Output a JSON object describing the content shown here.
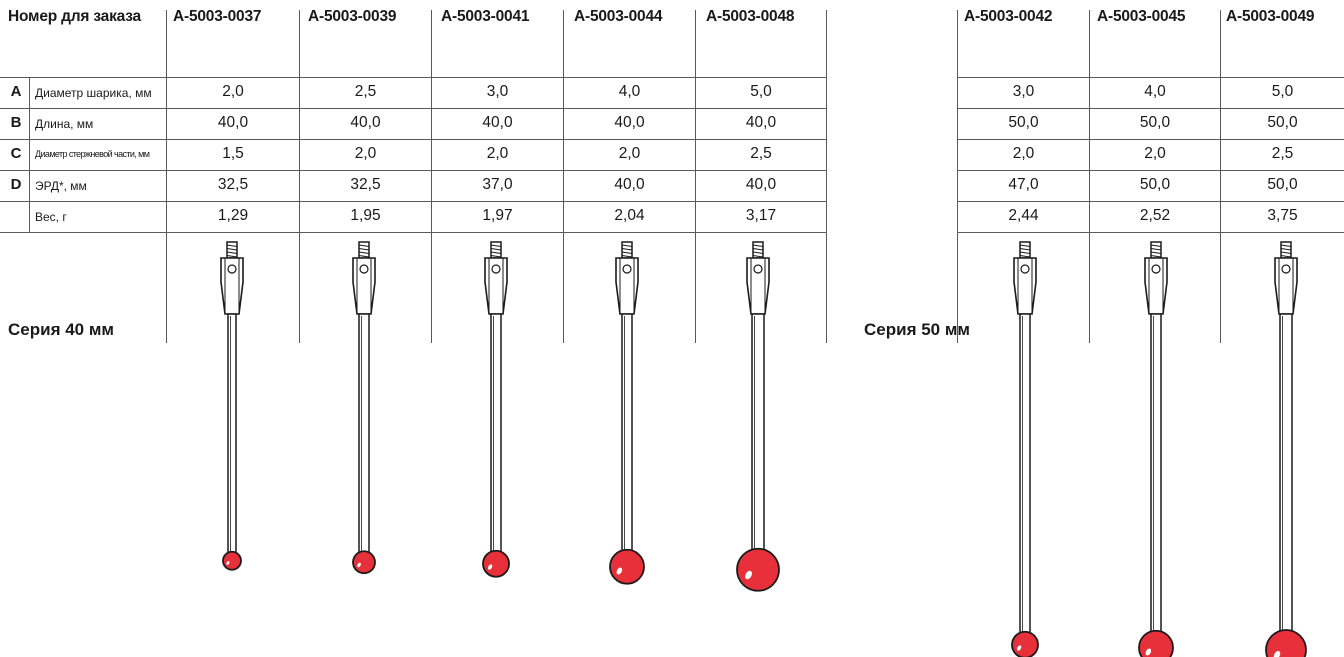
{
  "table40": {
    "header_label": "Номер для заказа",
    "columns": [
      "A-5003-0037",
      "A-5003-0039",
      "A-5003-0041",
      "A-5003-0044",
      "A-5003-0048"
    ],
    "rows": [
      {
        "letter": "A",
        "label": "Диаметр шарика, мм",
        "values": [
          "2,0",
          "2,5",
          "3,0",
          "4,0",
          "5,0"
        ]
      },
      {
        "letter": "B",
        "label": "Длина, мм",
        "values": [
          "40,0",
          "40,0",
          "40,0",
          "40,0",
          "40,0"
        ]
      },
      {
        "letter": "C",
        "label": "Диаметр стержневой части, мм",
        "values": [
          "1,5",
          "2,0",
          "2,0",
          "2,0",
          "2,5"
        ]
      },
      {
        "letter": "D",
        "label": "ЭРД*, мм",
        "values": [
          "32,5",
          "32,5",
          "37,0",
          "40,0",
          "40,0"
        ]
      },
      {
        "letter": "",
        "label": "Вес, г",
        "values": [
          "1,29",
          "1,95",
          "1,97",
          "2,04",
          "3,17"
        ]
      }
    ],
    "series_label": "Серия 40 мм"
  },
  "table50": {
    "columns": [
      "A-5003-0042",
      "A-5003-0045",
      "A-5003-0049"
    ],
    "rows": [
      {
        "values": [
          "3,0",
          "4,0",
          "5,0"
        ]
      },
      {
        "values": [
          "50,0",
          "50,0",
          "50,0"
        ]
      },
      {
        "values": [
          "2,0",
          "2,0",
          "2,5"
        ]
      },
      {
        "values": [
          "47,0",
          "50,0",
          "50,0"
        ]
      },
      {
        "values": [
          "2,44",
          "2,52",
          "3,75"
        ]
      }
    ],
    "series_label": "Серия 50 мм"
  },
  "colors": {
    "ball": "#e8303a",
    "ball_highlight": "#ffffff",
    "line": "#1a1a1a",
    "grid": "#5a5a5a"
  }
}
